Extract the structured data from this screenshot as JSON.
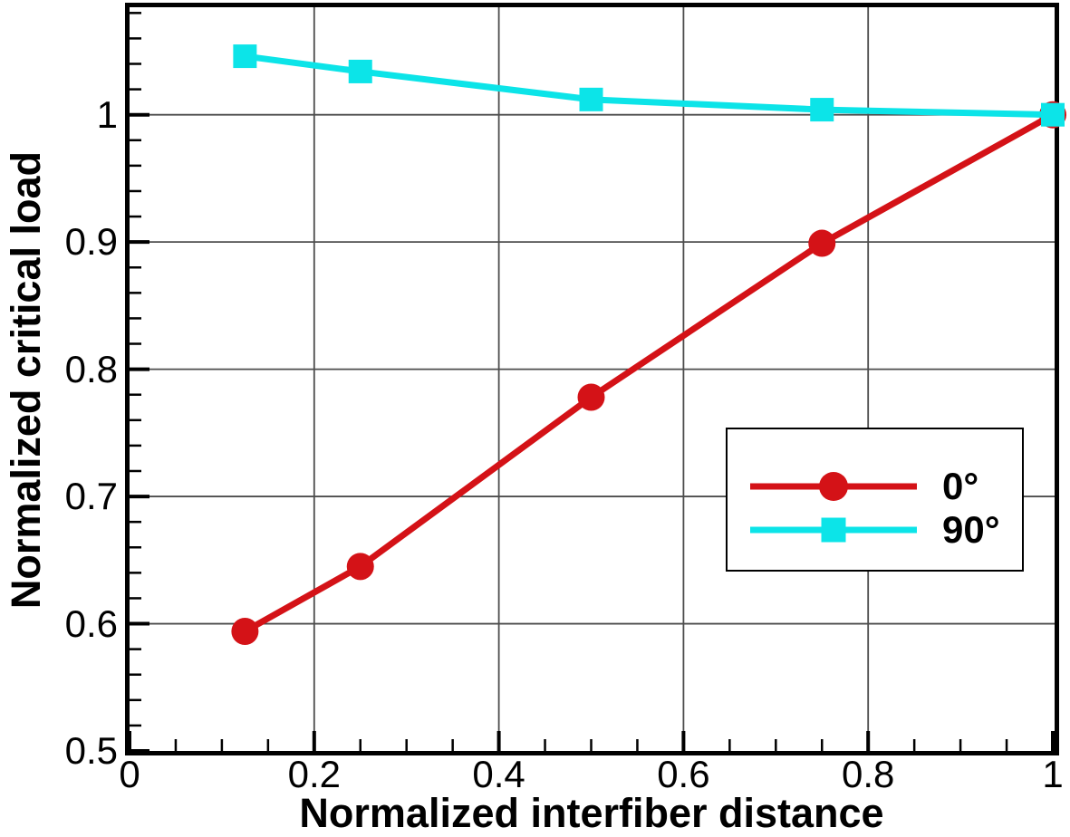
{
  "chart_data": {
    "type": "line",
    "title": "",
    "xlabel": "Normalized interfiber distance",
    "ylabel": "Normalized critical load",
    "xlim": [
      0,
      1.0
    ],
    "ylim": [
      0.5,
      1.0845
    ],
    "x_major_tick_values": [
      0,
      0.2,
      0.4,
      0.6,
      0.8,
      1.0
    ],
    "x_tick_labels": [
      "0",
      "0.2",
      "0.4",
      "0.6",
      "0.8",
      "1"
    ],
    "x_minor_step": 0.05,
    "y_major_tick_values": [
      0.5,
      0.6,
      0.7,
      0.8,
      0.9,
      1.0
    ],
    "y_tick_labels": [
      "0.5",
      "0.6",
      "0.7",
      "0.8",
      "0.9",
      "1"
    ],
    "y_minor_step": 0.02,
    "grid": true,
    "gridline_color": "#4d4d4d",
    "x_gridline_values": [
      0.2,
      0.4,
      0.6,
      0.8
    ],
    "y_gridline_values": [
      0.6,
      0.7,
      0.8,
      0.9,
      1.0
    ],
    "legend_position": "middle-right",
    "series": [
      {
        "name": "0°",
        "color": "#d41217",
        "marker": "circle",
        "x": [
          0.125,
          0.25,
          0.5,
          0.75,
          1.0
        ],
        "y": [
          0.594,
          0.645,
          0.778,
          0.899,
          1.0
        ]
      },
      {
        "name": "90°",
        "color": "#0ce4e8",
        "marker": "square",
        "x": [
          0.125,
          0.25,
          0.5,
          0.75,
          1.0
        ],
        "y": [
          1.046,
          1.034,
          1.012,
          1.004,
          1.0
        ]
      }
    ]
  },
  "legend": {
    "entries": [
      {
        "label": "0°"
      },
      {
        "label": "90°"
      }
    ]
  }
}
